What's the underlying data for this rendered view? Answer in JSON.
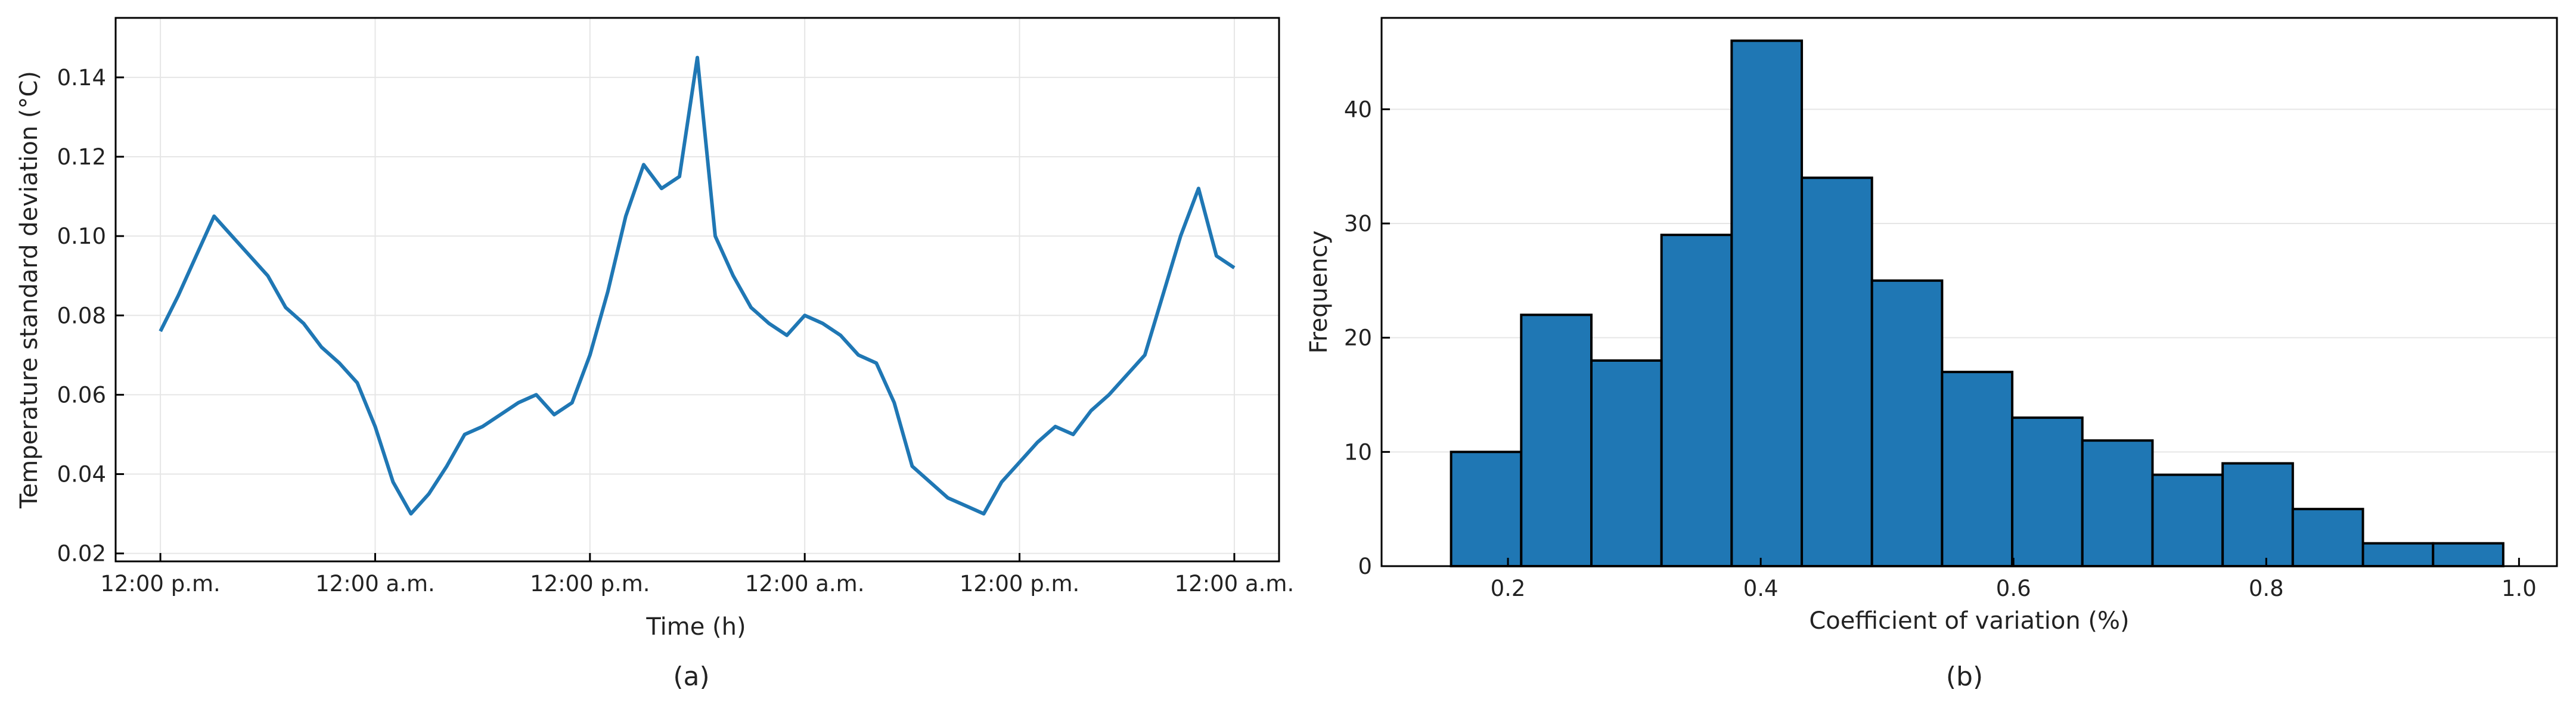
{
  "chart_data": [
    {
      "type": "line",
      "panel_label": "(a)",
      "xlabel": "Time (h)",
      "ylabel": "Temperature standard deviation (°C)",
      "ylim": [
        0.018,
        0.155
      ],
      "yticks": [
        0.02,
        0.04,
        0.06,
        0.08,
        0.1,
        0.12,
        0.14
      ],
      "ytick_labels": [
        "0.02",
        "0.04",
        "0.06",
        "0.08",
        "0.10",
        "0.12",
        "0.14"
      ],
      "xlim": [
        -2.5,
        62.5
      ],
      "xticks": [
        0,
        12,
        24,
        36,
        48,
        60
      ],
      "xtick_labels": [
        "12:00 p.m.",
        "12:00 a.m.",
        "12:00 p.m.",
        "12:00 a.m.",
        "12:00 p.m.",
        "12:00 a.m."
      ],
      "grid": true,
      "color": "#1f77b4",
      "series": [
        {
          "x": [
            0,
            1,
            2,
            3,
            4,
            5,
            6,
            7,
            8,
            9,
            10,
            11,
            12,
            13,
            14,
            15,
            16,
            17,
            18,
            19,
            20,
            21,
            22,
            23,
            24,
            25,
            26,
            27,
            28,
            29,
            30,
            31,
            32,
            33,
            34,
            35,
            36,
            37,
            38,
            39,
            40,
            41,
            42,
            43,
            44,
            45,
            46,
            47,
            48,
            49,
            50,
            51,
            52,
            53,
            54,
            55,
            56,
            57,
            58,
            59,
            60
          ],
          "y": [
            0.076,
            0.085,
            0.095,
            0.105,
            0.1,
            0.095,
            0.09,
            0.082,
            0.078,
            0.072,
            0.068,
            0.063,
            0.052,
            0.038,
            0.03,
            0.035,
            0.042,
            0.05,
            0.052,
            0.055,
            0.058,
            0.06,
            0.055,
            0.058,
            0.07,
            0.086,
            0.105,
            0.118,
            0.112,
            0.115,
            0.145,
            0.1,
            0.09,
            0.082,
            0.078,
            0.075,
            0.08,
            0.078,
            0.075,
            0.07,
            0.068,
            0.058,
            0.042,
            0.038,
            0.034,
            0.032,
            0.03,
            0.038,
            0.043,
            0.048,
            0.052,
            0.05,
            0.056,
            0.06,
            0.065,
            0.07,
            0.085,
            0.1,
            0.112,
            0.095,
            0.092
          ]
        }
      ]
    },
    {
      "type": "bar",
      "panel_label": "(b)",
      "xlabel": "Coefficient of variation (%)",
      "ylabel": "Frequency",
      "xlim": [
        0.1,
        1.03
      ],
      "ylim": [
        0,
        48
      ],
      "xticks": [
        0.2,
        0.4,
        0.6,
        0.8,
        1.0
      ],
      "xtick_labels": [
        "0.2",
        "0.4",
        "0.6",
        "0.8",
        "1.0"
      ],
      "yticks": [
        0,
        10,
        20,
        30,
        40
      ],
      "ytick_labels": [
        "0",
        "10",
        "20",
        "30",
        "40"
      ],
      "grid": true,
      "color": "#1f77b4",
      "bin_edges": [
        0.155,
        0.2105,
        0.266,
        0.3215,
        0.377,
        0.4325,
        0.488,
        0.5435,
        0.599,
        0.6545,
        0.71,
        0.7655,
        0.821,
        0.8765,
        0.932,
        0.9875
      ],
      "values": [
        10,
        22,
        18,
        29,
        46,
        34,
        25,
        17,
        13,
        11,
        8,
        9,
        5,
        2,
        2
      ]
    }
  ]
}
